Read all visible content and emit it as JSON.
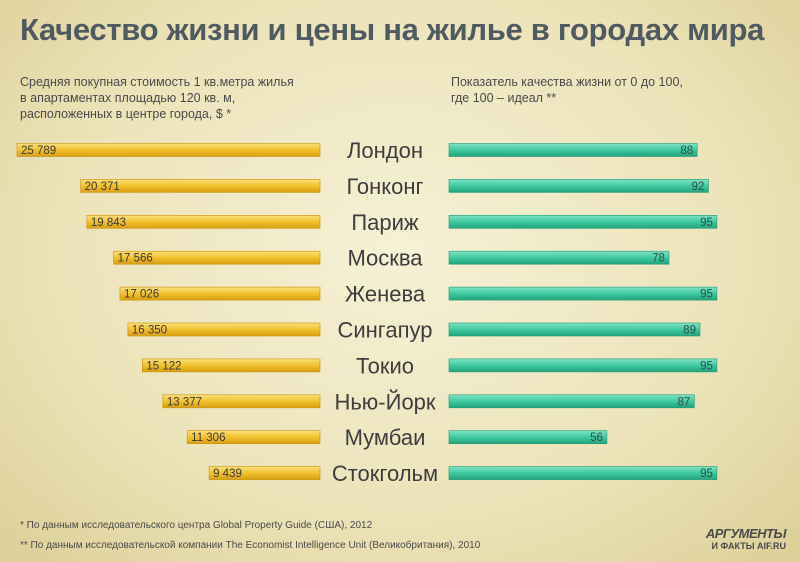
{
  "title": "Качество жизни и цены на жилье в городах мира",
  "subtitle_left": "Средняя покупная стоимость 1 кв.метра жилья\nв апартаментах площадью 120 кв. м,\nрасположенных в центре города, $ *",
  "subtitle_right": "Показатель качества жизни от 0 до 100,\nгде 100 – идеал **",
  "footnotes": [
    "* По данным исследовательского центра Global Property Guide (США), 2012",
    "** По данным исследовательской компании The Economist Intelligence Unit (Великобритания), 2010"
  ],
  "logo": {
    "line1": "АРГУМЕНТЫ",
    "line2": "И ФАКТЫ AIF.RU"
  },
  "colors": {
    "left_bar": "#f2c12e",
    "right_bar": "#3fc9a0",
    "title": "#4f5b60"
  },
  "chart_data": {
    "type": "bar",
    "categories": [
      "Лондон",
      "Гонконг",
      "Париж",
      "Москва",
      "Женева",
      "Сингапур",
      "Токио",
      "Нью-Йорк",
      "Мумбаи",
      "Стокгольм"
    ],
    "series": [
      {
        "values": [
          25789,
          20371,
          19843,
          17566,
          17026,
          16350,
          15122,
          13377,
          11306,
          9439
        ],
        "labels": [
          "25 789",
          "20 371",
          "19 843",
          "17 566",
          "17 026",
          "16 350",
          "15 122",
          "13 377",
          "11 306",
          "9 439"
        ]
      },
      {
        "values": [
          88,
          92,
          95,
          78,
          95,
          89,
          95,
          87,
          56,
          95
        ],
        "labels": [
          "88",
          "92",
          "95",
          "78",
          "95",
          "89",
          "95",
          "87",
          "56",
          "95"
        ]
      }
    ],
    "orientation": "horizontal, left series extends leftward, right series extends rightward"
  }
}
